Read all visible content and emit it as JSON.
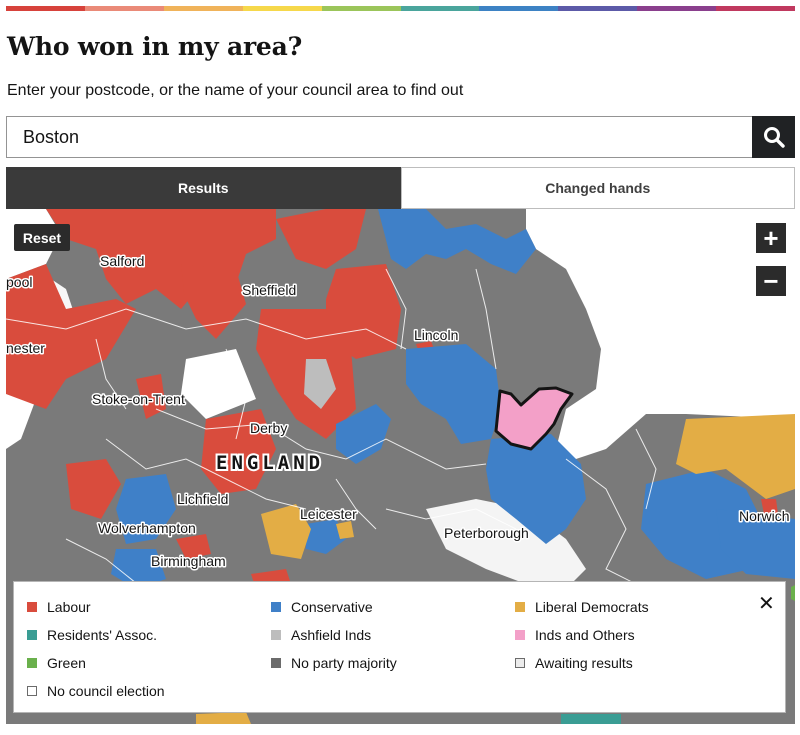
{
  "header": {
    "rainbow_colors": [
      "#d7423b",
      "#ea8a78",
      "#f0b35a",
      "#f6d84b",
      "#9bc55a",
      "#4aa59c",
      "#3d82c4",
      "#5c5aa8",
      "#8a3f8d",
      "#c0395f"
    ],
    "title": "Who won in my area?",
    "subtitle": "Enter your postcode, or the name of your council area to find out"
  },
  "search": {
    "value": "Boston",
    "button_icon": "search-icon"
  },
  "tabs": [
    {
      "label": "Results",
      "active": true
    },
    {
      "label": "Changed hands",
      "active": false
    }
  ],
  "map": {
    "reset_label": "Reset",
    "zoom_in_label": "+",
    "zoom_out_label": "−",
    "country_label": "ENGLAND",
    "place_labels": {
      "salford": "Salford",
      "pool": "pool",
      "sheffield": "Sheffield",
      "nester": "nester",
      "lincoln": "Lincoln",
      "stoke": "Stoke-on-Trent",
      "derby": "Derby",
      "lichfield": "Lichfield",
      "leicester": "Leicester",
      "wolverhampton": "Wolverhampton",
      "peterborough": "Peterborough",
      "birmingham": "Birmingham",
      "norwich": "Norwich"
    },
    "highlighted_area": "Boston",
    "colors": {
      "labour": "#d94c3d",
      "conservative": "#3f80c8",
      "libdem": "#e3ad45",
      "residents": "#3a9d94",
      "ashfield": "#bdbdbd",
      "inds_others": "#f3a0c8",
      "green": "#6ab04c",
      "no_majority": "#7a7a7a",
      "awaiting": "#ececec"
    }
  },
  "legend": {
    "close_icon": "close-icon",
    "items": [
      {
        "label": "Labour",
        "color": "#d94c3d"
      },
      {
        "label": "Conservative",
        "color": "#3f80c8"
      },
      {
        "label": "Liberal Democrats",
        "color": "#e3ad45"
      },
      {
        "label": "Residents' Assoc.",
        "color": "#3a9d94"
      },
      {
        "label": "Ashfield Inds",
        "color": "#bdbdbd"
      },
      {
        "label": "Inds and Others",
        "color": "#f3a0c8"
      },
      {
        "label": "Green",
        "color": "#6ab04c"
      },
      {
        "label": "No party majority",
        "color": "#6b6b6b"
      },
      {
        "label": "Awaiting results",
        "color": "#ececec"
      },
      {
        "label": "No council election",
        "color": "#ffffff"
      }
    ]
  }
}
